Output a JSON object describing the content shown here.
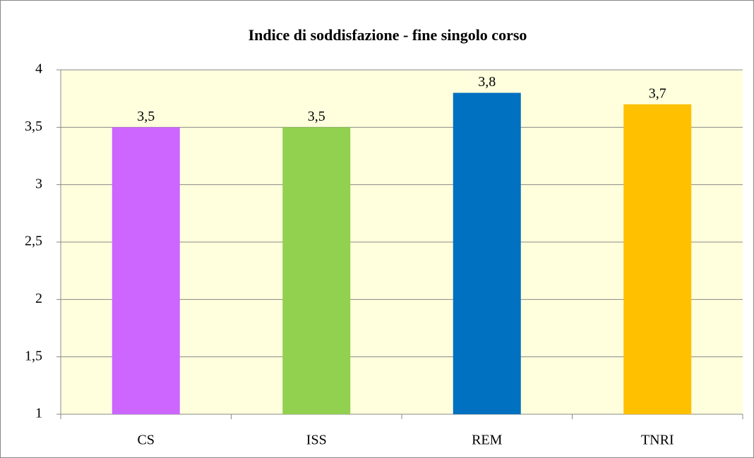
{
  "chart_data": {
    "type": "bar",
    "title": "Indice di soddisfazione - fine singolo corso",
    "categories": [
      "CS",
      "ISS",
      "REM",
      "TNRI"
    ],
    "values": [
      3.5,
      3.5,
      3.8,
      3.7
    ],
    "value_labels": [
      "3,5",
      "3,5",
      "3,8",
      "3,7"
    ],
    "colors": [
      "#cc66ff",
      "#92d050",
      "#0070c0",
      "#ffc000"
    ],
    "ylim": [
      1,
      4
    ],
    "yticks": [
      1,
      {
        "value": 1.5,
        "label": "1,5"
      },
      2,
      {
        "value": 2.5,
        "label": "2,5"
      },
      3,
      {
        "value": 3.5,
        "label": "3,5"
      },
      4
    ],
    "grid": true
  }
}
